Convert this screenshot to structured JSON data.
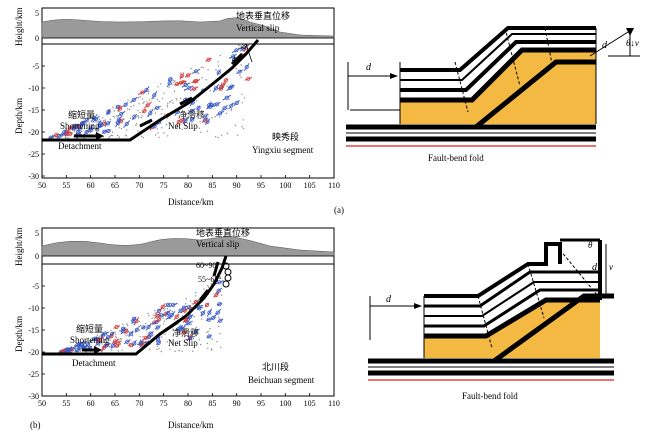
{
  "colors": {
    "terrain": "#9a9a9a",
    "fold_fill": "#f4b942",
    "baseline": "#d92020",
    "fault": "#000000",
    "quake_blue": "#3a5cc8",
    "quake_red": "#d43a3a",
    "quake_dot": "#8a8a8a"
  },
  "panel_a": {
    "label": "(a)",
    "plot": {
      "xlabel": "Distance/km",
      "ylabel_height": "Height/km",
      "ylabel_depth": "Depth/km",
      "x_ticks": [
        "50",
        "55",
        "60",
        "65",
        "70",
        "75",
        "80",
        "85",
        "90",
        "95",
        "100",
        "105",
        "110"
      ],
      "height_ticks": [
        "5",
        "0"
      ],
      "depth_ticks": [
        "-5",
        "-10",
        "-15",
        "-20",
        "-25",
        "-30"
      ],
      "labels": {
        "vertical_slip_cn": "地表垂直位移",
        "vertical_slip_en": "Vertical slip",
        "angle_upper": "58°",
        "angle_lower": "44°",
        "shortening_cn": "缩短量",
        "shortening_en": "Shortening",
        "net_slip_cn": "净滑移",
        "net_slip_en": "Net Slip",
        "detachment": "Detachment",
        "segment_cn": "映秀段",
        "segment_en": "Yingxiu segment"
      }
    },
    "diagram": {
      "title": "Fault-bend fold",
      "d_left": "d",
      "d_right": "d",
      "theta_v": "θ↓v"
    }
  },
  "panel_b": {
    "label": "(b)",
    "plot": {
      "xlabel": "Distance/km",
      "ylabel_height": "Height/km",
      "ylabel_depth": "Depth/km",
      "x_ticks": [
        "50",
        "55",
        "60",
        "65",
        "70",
        "75",
        "80",
        "85",
        "90",
        "95",
        "100",
        "105",
        "110"
      ],
      "height_ticks": [
        "5",
        "0"
      ],
      "depth_ticks": [
        "-5",
        "-10",
        "-15",
        "-20",
        "-25",
        "-30"
      ],
      "labels": {
        "vertical_slip_cn": "地表垂直位移",
        "vertical_slip_en": "Vertical slip",
        "angle_upper": "60~90°",
        "angle_lower": "55~65°",
        "shortening_cn": "缩短量",
        "shortening_en": "Shortening",
        "net_slip_cn": "净滑移",
        "net_slip_en": "Net Slip",
        "detachment": "Detachment",
        "segment_cn": "北川段",
        "segment_en": "Beichuan segment"
      }
    },
    "diagram": {
      "title": "Fault-bend fold",
      "d_left": "d",
      "theta": "θ",
      "d_right": "d",
      "v": "v"
    }
  }
}
